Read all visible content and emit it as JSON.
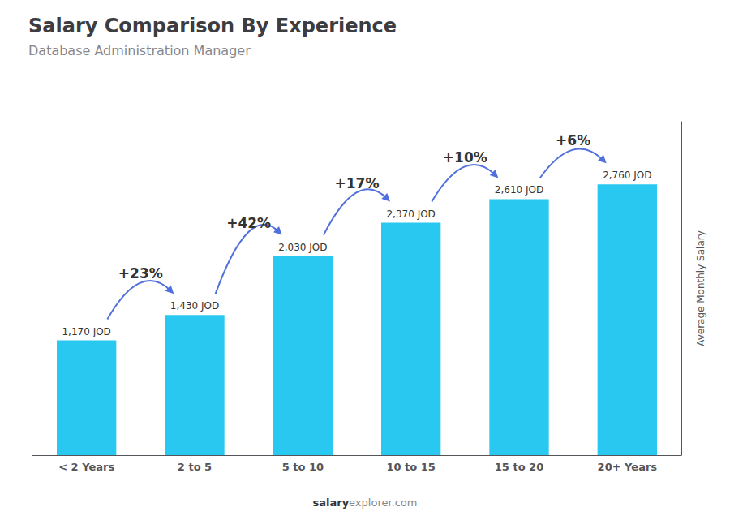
{
  "chart_data": {
    "type": "bar",
    "title": "Salary Comparison By Experience",
    "subtitle": "Database Administration Manager",
    "categories": [
      "< 2 Years",
      "2 to 5",
      "5 to 10",
      "10 to 15",
      "15 to 20",
      "20+ Years"
    ],
    "values": [
      1170,
      1430,
      2030,
      2370,
      2610,
      2760
    ],
    "value_labels": [
      "1,170 JOD",
      "1,430 JOD",
      "2,030 JOD",
      "2,370 JOD",
      "2,610 JOD",
      "2,760 JOD"
    ],
    "data_labels": true,
    "color": "#29c8f0",
    "ylim": [
      0,
      3400
    ],
    "yticks": [],
    "tick_labels": "x",
    "grid": false,
    "ylabel": "Average Monthly Salary",
    "annotations": [
      "+23%",
      "+42%",
      "+17%",
      "+10%",
      "+6%"
    ],
    "footer": [
      "salary",
      "explorer.com"
    ]
  }
}
